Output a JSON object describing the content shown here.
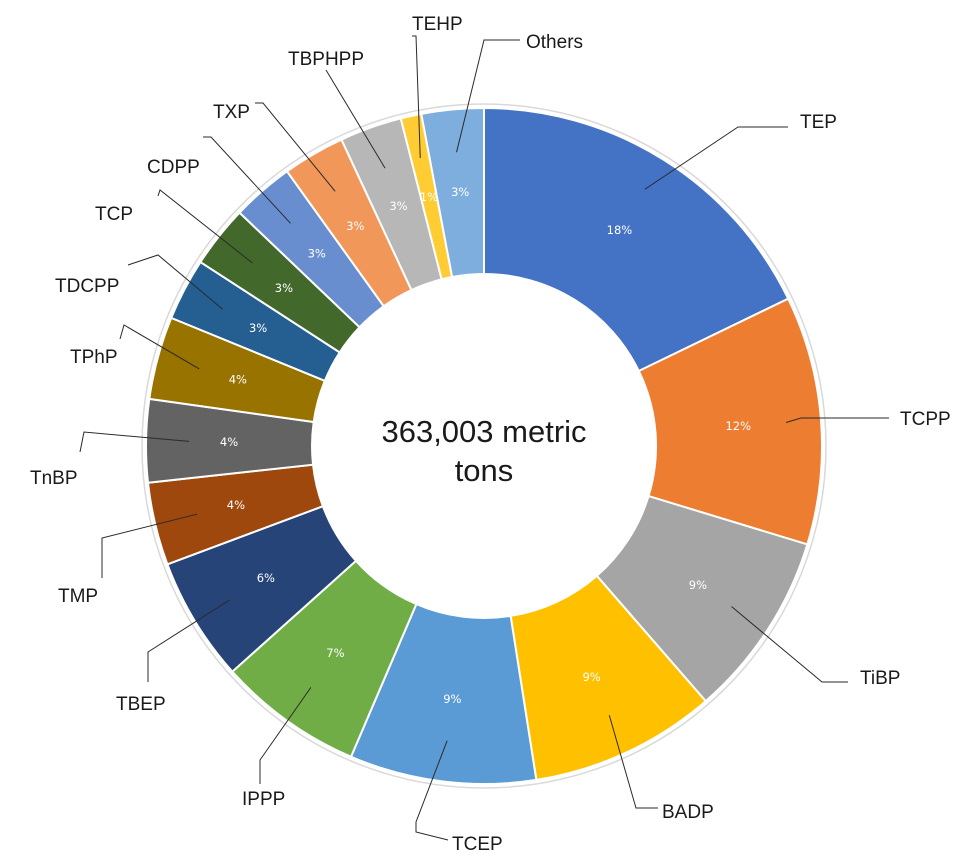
{
  "chart_data": {
    "type": "pie",
    "donut": true,
    "title": "",
    "center_text": [
      "363,003 metric",
      "tons"
    ],
    "legend": "none",
    "slices": [
      {
        "label": "TEP",
        "value": 18,
        "value_label": "18%",
        "color": "#4472C4"
      },
      {
        "label": "TCPP",
        "value": 12,
        "value_label": "12%",
        "color": "#ED7D31"
      },
      {
        "label": "TiBP",
        "value": 9,
        "value_label": "9%",
        "color": "#A5A5A5"
      },
      {
        "label": "BADP",
        "value": 9,
        "value_label": "9%",
        "color": "#FFC000"
      },
      {
        "label": "TCEP",
        "value": 9,
        "value_label": "9%",
        "color": "#5B9BD5"
      },
      {
        "label": "IPPP",
        "value": 7,
        "value_label": "7%",
        "color": "#70AD47"
      },
      {
        "label": "TBEP",
        "value": 6,
        "value_label": "6%",
        "color": "#264478"
      },
      {
        "label": "TMP",
        "value": 4,
        "value_label": "4%",
        "color": "#9E480E"
      },
      {
        "label": "TnBP",
        "value": 4,
        "value_label": "4%",
        "color": "#636363"
      },
      {
        "label": "TPhP",
        "value": 4,
        "value_label": "4%",
        "color": "#997300"
      },
      {
        "label": "TDCPP",
        "value": 3,
        "value_label": "3%",
        "color": "#255E91"
      },
      {
        "label": "TCP",
        "value": 3,
        "value_label": "3%",
        "color": "#43682B"
      },
      {
        "label": "CDPP",
        "value": 3,
        "value_label": "3%",
        "color": "#698ED0"
      },
      {
        "label": "TXP",
        "value": 3,
        "value_label": "3%",
        "color": "#F1975A"
      },
      {
        "label": "TBPHPP",
        "value": 3,
        "value_label": "3%",
        "color": "#B7B7B7"
      },
      {
        "label": "TEHP",
        "value": 1,
        "value_label": "1%",
        "color": "#FFCD33"
      },
      {
        "label": "Others",
        "value": 3,
        "value_label": "3%",
        "color": "#7EAEDD"
      }
    ]
  }
}
